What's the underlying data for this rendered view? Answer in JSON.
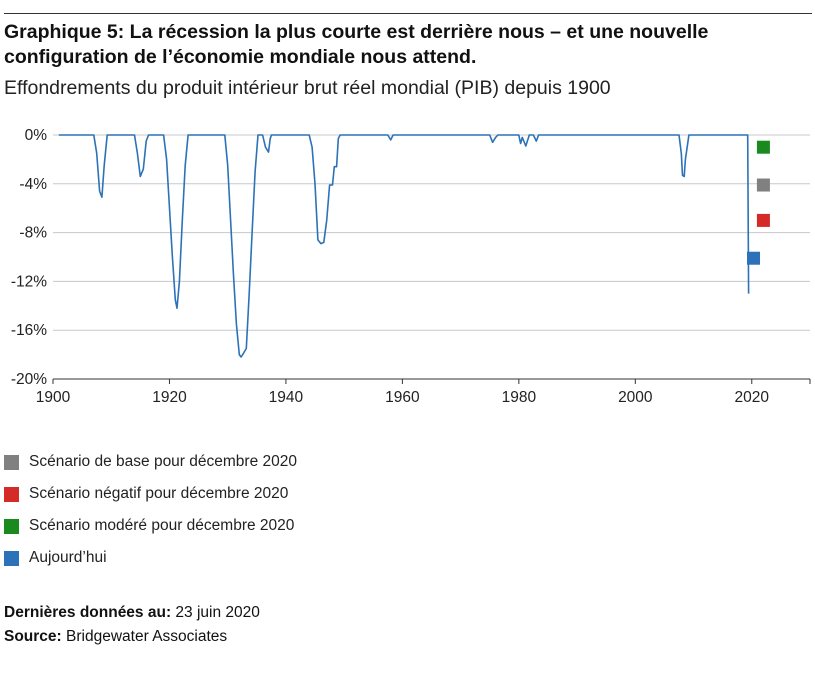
{
  "header": {
    "title": "Graphique 5: La récession la plus courte est derrière nous – et une nouvelle configuration de l’économie mondiale nous attend.",
    "subtitle": "Effondrements du produit intérieur brut réel mondial (PIB) depuis 1900"
  },
  "legend": {
    "items": [
      {
        "label": "Scénario de base pour décembre 2020",
        "color": "#808080"
      },
      {
        "label": "Scénario négatif pour décembre 2020",
        "color": "#d42a28"
      },
      {
        "label": "Scénario modéré pour décembre 2020",
        "color": "#1a8a1f"
      },
      {
        "label": "Aujourd’hui",
        "color": "#2c72b8"
      }
    ]
  },
  "footer": {
    "last_data_label": "Dernières données au:",
    "last_data_value": "23 juin 2020",
    "source_label": "Source:",
    "source_value": "Bridgewater Associates"
  },
  "chart_data": {
    "type": "line",
    "title": "Graphique 5: La récession la plus courte est derrière nous – et une nouvelle configuration de l’économie mondiale nous attend.",
    "subtitle": "Effondrements du produit intérieur brut réel mondial (PIB) depuis 1900",
    "xlim": [
      1900,
      2030
    ],
    "ylim": [
      -20,
      0
    ],
    "x_ticks": [
      1900,
      1920,
      1940,
      1960,
      1980,
      2000,
      2020
    ],
    "x_tick_labels": [
      "1900",
      "1920",
      "1940",
      "1960",
      "1980",
      "2000",
      "2020"
    ],
    "y_ticks": [
      0,
      -4,
      -8,
      -12,
      -16,
      -20
    ],
    "y_tick_labels": [
      "0%",
      "-4%",
      "-8%",
      "-12%",
      "-16%",
      "-20%"
    ],
    "grid": "horizontal",
    "line_color": "#2c72b8",
    "series": [
      {
        "points": [
          [
            1901,
            0
          ],
          [
            1907,
            0
          ],
          [
            1907.5,
            -1.5
          ],
          [
            1908,
            -4.6
          ],
          [
            1908.4,
            -5.1
          ],
          [
            1908.8,
            -2.5
          ],
          [
            1909.3,
            0
          ],
          [
            1914,
            0
          ],
          [
            1914.5,
            -1.5
          ],
          [
            1915,
            -3.4
          ],
          [
            1915.5,
            -2.8
          ],
          [
            1916,
            -0.5
          ],
          [
            1916.4,
            0
          ],
          [
            1919,
            0
          ],
          [
            1919.5,
            -2
          ],
          [
            1920,
            -6
          ],
          [
            1920.5,
            -10
          ],
          [
            1921,
            -13.5
          ],
          [
            1921.3,
            -14.2
          ],
          [
            1921.7,
            -12
          ],
          [
            1922.2,
            -7
          ],
          [
            1922.7,
            -2.5
          ],
          [
            1923.2,
            0
          ],
          [
            1929.5,
            0
          ],
          [
            1930,
            -2.5
          ],
          [
            1930.5,
            -7
          ],
          [
            1931,
            -11.5
          ],
          [
            1931.5,
            -15.5
          ],
          [
            1932,
            -18
          ],
          [
            1932.3,
            -18.2
          ],
          [
            1932.7,
            -17.9
          ],
          [
            1933.2,
            -17.5
          ],
          [
            1933.7,
            -13
          ],
          [
            1934.2,
            -8
          ],
          [
            1934.7,
            -3
          ],
          [
            1935.2,
            0
          ],
          [
            1936,
            0
          ],
          [
            1936.5,
            -1
          ],
          [
            1937,
            -1.4
          ],
          [
            1937.3,
            -0.3
          ],
          [
            1937.5,
            0
          ],
          [
            1944,
            0
          ],
          [
            1944.5,
            -1
          ],
          [
            1945,
            -4
          ],
          [
            1945.5,
            -8.6
          ],
          [
            1946,
            -8.9
          ],
          [
            1946.5,
            -8.8
          ],
          [
            1947,
            -7
          ],
          [
            1947.5,
            -4.1
          ],
          [
            1948,
            -4.1
          ],
          [
            1948.3,
            -2.6
          ],
          [
            1948.7,
            -2.6
          ],
          [
            1949,
            -0.3
          ],
          [
            1949.3,
            0
          ],
          [
            1957.5,
            0
          ],
          [
            1958,
            -0.4
          ],
          [
            1958.4,
            0
          ],
          [
            1975,
            0
          ],
          [
            1975.5,
            -0.6
          ],
          [
            1976,
            -0.2
          ],
          [
            1976.4,
            0
          ],
          [
            1980,
            0
          ],
          [
            1980.3,
            -0.7
          ],
          [
            1980.6,
            -0.2
          ],
          [
            1981.2,
            -0.9
          ],
          [
            1981.8,
            0
          ],
          [
            1982.5,
            0
          ],
          [
            1983,
            -0.5
          ],
          [
            1983.4,
            0
          ],
          [
            2007.5,
            0
          ],
          [
            2007.9,
            -1.5
          ],
          [
            2008.1,
            -3.3
          ],
          [
            2008.4,
            -3.4
          ],
          [
            2008.6,
            -2
          ],
          [
            2009.2,
            0
          ],
          [
            2019.3,
            0
          ],
          [
            2019.45,
            -13
          ]
        ]
      }
    ],
    "markers": [
      {
        "name": "Scénario modéré pour décembre 2020",
        "x": 2022,
        "y": -1,
        "color": "#1a8a1f"
      },
      {
        "name": "Scénario de base pour décembre 2020",
        "x": 2022,
        "y": -4.1,
        "color": "#808080"
      },
      {
        "name": "Scénario négatif pour décembre 2020",
        "x": 2022,
        "y": -7,
        "color": "#d42a28"
      },
      {
        "name": "Aujourd’hui",
        "x": 2020.3,
        "y": -10.1,
        "color": "#2c72b8"
      }
    ]
  }
}
